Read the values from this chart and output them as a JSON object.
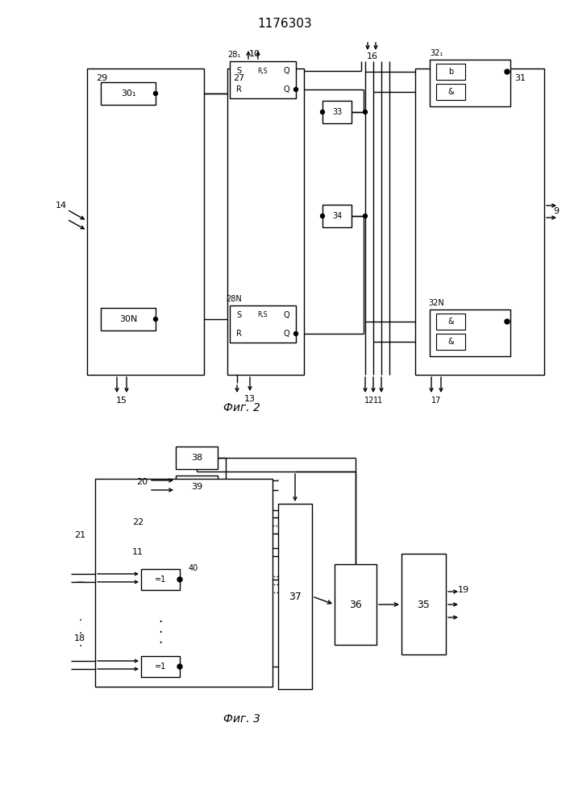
{
  "title": "1176303",
  "fig2_label": "Фиг. 2",
  "fig3_label": "Фиг. 3",
  "bg_color": "#ffffff",
  "lw": 1.0
}
